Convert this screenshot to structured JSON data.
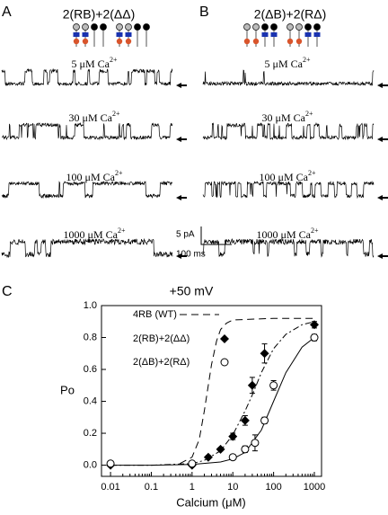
{
  "panels": {
    "A": {
      "label": "A",
      "title": "2(RB)+2(ΔΔ)"
    },
    "B": {
      "label": "B",
      "title": "2(ΔB)+2(RΔ)"
    },
    "C": {
      "label": "C"
    },
    "conditions": [
      {
        "text": "5 μM Ca",
        "sup": "2+"
      },
      {
        "text": "30 μM Ca",
        "sup": "2+"
      },
      {
        "text": "100 μM Ca",
        "sup": "2+"
      },
      {
        "text": "1000 μM Ca",
        "sup": "2+"
      }
    ],
    "scale_current": "5 pA",
    "scale_time": "100 ms"
  },
  "chart_data": {
    "type": "scatter",
    "title": "+50 mV",
    "y_label": "Po",
    "x_label": "Calcium (μM)",
    "log_x": true,
    "xlim": [
      0.006,
      1500
    ],
    "xticks": [
      0.01,
      0.1,
      1,
      10,
      100,
      1000
    ],
    "ylim": [
      -0.07,
      1.0
    ],
    "yticks": [
      {
        "value": 0,
        "label": "0.0"
      },
      {
        "value": 0.2,
        "label": "0.2"
      },
      {
        "value": 0.4,
        "label": "0.4"
      },
      {
        "value": 0.6,
        "label": "0.6"
      },
      {
        "value": 0.8,
        "label": "0.8"
      },
      {
        "value": 1.0,
        "label": "1.0"
      }
    ],
    "series": [
      {
        "name": "4RB (WT)",
        "color": "#000000",
        "fit": {
          "dash": "8 5",
          "x": [
            0.5,
            1,
            1.5,
            2,
            2.5,
            3,
            4,
            5,
            7,
            10,
            100,
            1000
          ],
          "values": [
            0.01,
            0.05,
            0.16,
            0.34,
            0.5,
            0.63,
            0.78,
            0.85,
            0.89,
            0.91,
            0.92,
            0.92
          ]
        }
      },
      {
        "name": "2(RB)+2(ΔΔ)",
        "color": "#000000",
        "marker": "diamond",
        "x": [
          0.01,
          1,
          2.5,
          5,
          10,
          20,
          30,
          60,
          1000
        ],
        "values": [
          0.0,
          0.0,
          0.05,
          0.1,
          0.18,
          0.28,
          0.5,
          0.7,
          0.88
        ],
        "errors": [
          0.01,
          0.01,
          0.01,
          0.01,
          0.02,
          0.03,
          0.05,
          0.06,
          0.02
        ],
        "fit": {
          "dash": "7 3 2 3",
          "x": [
            0.01,
            0.1,
            1,
            2,
            5,
            10,
            20,
            30,
            50,
            100,
            200,
            500,
            1000
          ],
          "values": [
            0,
            0,
            0.01,
            0.03,
            0.09,
            0.19,
            0.34,
            0.44,
            0.58,
            0.73,
            0.82,
            0.88,
            0.9
          ]
        }
      },
      {
        "name": "2(ΔB)+2(RΔ)",
        "color": "#000000",
        "marker": "circle",
        "x": [
          0.01,
          1,
          10,
          20,
          35,
          60,
          100,
          1000
        ],
        "values": [
          0.01,
          0.01,
          0.05,
          0.1,
          0.14,
          0.28,
          0.5,
          0.8
        ],
        "errors": [
          0.01,
          0.01,
          0.01,
          0.02,
          0.05,
          0.02,
          0.03,
          0.02
        ],
        "fit": {
          "dash": "none",
          "x": [
            0.01,
            0.1,
            1,
            5,
            10,
            20,
            50,
            100,
            200,
            500,
            1000
          ],
          "values": [
            0,
            0,
            0.005,
            0.02,
            0.04,
            0.08,
            0.22,
            0.4,
            0.58,
            0.74,
            0.8
          ]
        }
      }
    ]
  }
}
